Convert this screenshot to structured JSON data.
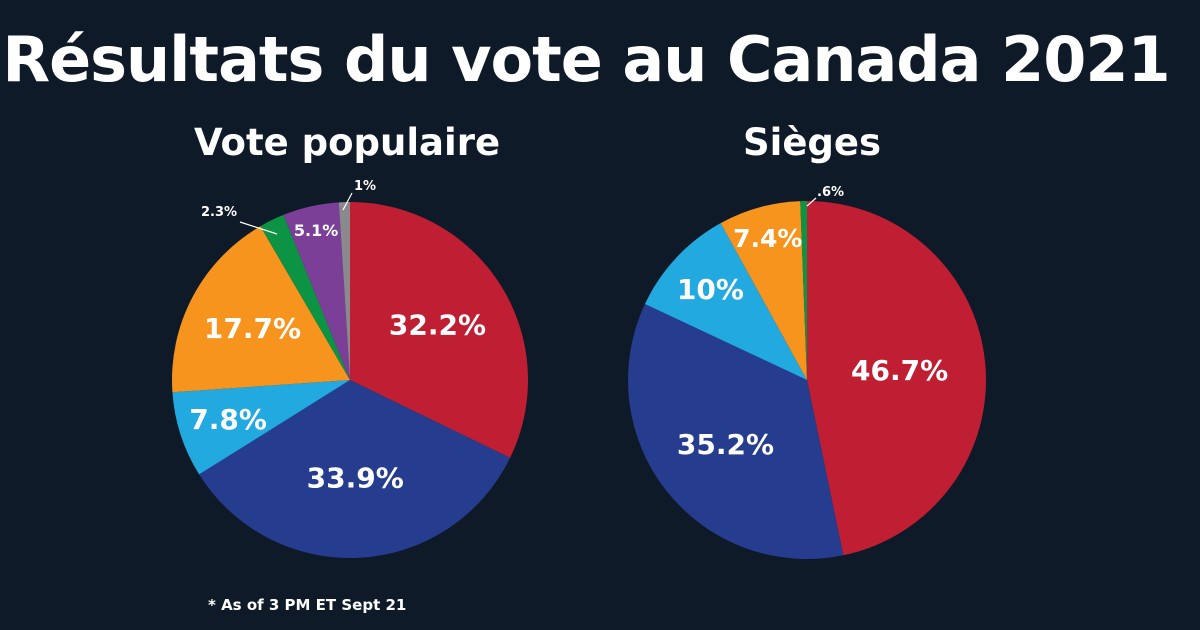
{
  "title": "Résultats du vote au Canada 2021",
  "footnote": "* As of 3 PM ET Sept 21",
  "colors": {
    "background": "#0f1a29",
    "red": "#c01f33",
    "blue": "#263d8f",
    "light_blue": "#22a9e0",
    "orange": "#f7941d",
    "green": "#0c9444",
    "purple": "#7b3f98",
    "grey": "#8a8a8e",
    "text": "#ffffff"
  },
  "chart_data": [
    {
      "type": "pie",
      "title": "Vote populaire",
      "start": "top",
      "direction": "clockwise",
      "slices": [
        {
          "label": "32.2%",
          "value": 32.2,
          "color": "#c01f33"
        },
        {
          "label": "33.9%",
          "value": 33.9,
          "color": "#263d8f"
        },
        {
          "label": "7.8%",
          "value": 7.8,
          "color": "#22a9e0"
        },
        {
          "label": "17.7%",
          "value": 17.7,
          "color": "#f7941d"
        },
        {
          "label": "2.3%",
          "value": 2.3,
          "color": "#0c9444",
          "callout": true
        },
        {
          "label": "5.1%",
          "value": 5.1,
          "color": "#7b3f98"
        },
        {
          "label": "1%",
          "value": 1.0,
          "color": "#8a8a8e",
          "callout": true
        }
      ]
    },
    {
      "type": "pie",
      "title": "Sièges",
      "start": "top",
      "direction": "clockwise",
      "slices": [
        {
          "label": "46.7%",
          "value": 46.7,
          "color": "#c01f33"
        },
        {
          "label": "35.2%",
          "value": 35.2,
          "color": "#263d8f"
        },
        {
          "label": "10%",
          "value": 10.0,
          "color": "#22a9e0"
        },
        {
          "label": "7.4%",
          "value": 7.4,
          "color": "#f7941d"
        },
        {
          "label": ".6%",
          "value": 0.6,
          "color": "#0c9444",
          "callout": true
        }
      ]
    }
  ]
}
